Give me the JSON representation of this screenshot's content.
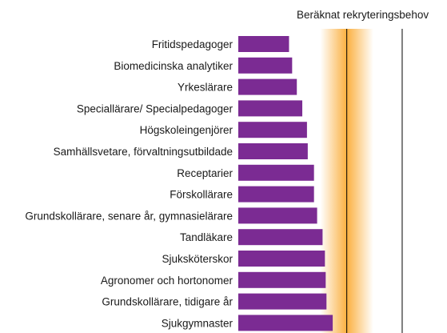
{
  "chart_data": {
    "type": "bar",
    "orientation": "horizontal",
    "categories": [
      "Fritidspedagoger",
      "Biomedicinska analytiker",
      "Yrkeslärare",
      "Speciallärare/ Specialpedagoger",
      "Högskoleingenjörer",
      "Samhällsvetare, förvaltningsutbildade",
      "Receptarier",
      "Förskollärare",
      "Grundskollärare, senare år, gymnasielärare",
      "Tandläkare",
      "Sjuksköterskor",
      "Agronomer och hortonomer",
      "Grundskollärare, tidigare år",
      "Sjukgymnaster"
    ],
    "values": [
      0.65,
      0.69,
      0.75,
      0.82,
      0.88,
      0.89,
      0.97,
      0.97,
      1.01,
      1.08,
      1.11,
      1.12,
      1.13,
      1.21
    ],
    "xlim": [
      0,
      2.2
    ],
    "reference_lines": [
      1.39,
      2.1
    ],
    "band": {
      "label": "Beräknat rekryteringsbehov",
      "center": 1.39,
      "half_width": 0.34
    },
    "colors": {
      "bar": "#7b2b93",
      "band": "#fbb040",
      "line": "#000000"
    },
    "grid": false,
    "legend": "none"
  }
}
